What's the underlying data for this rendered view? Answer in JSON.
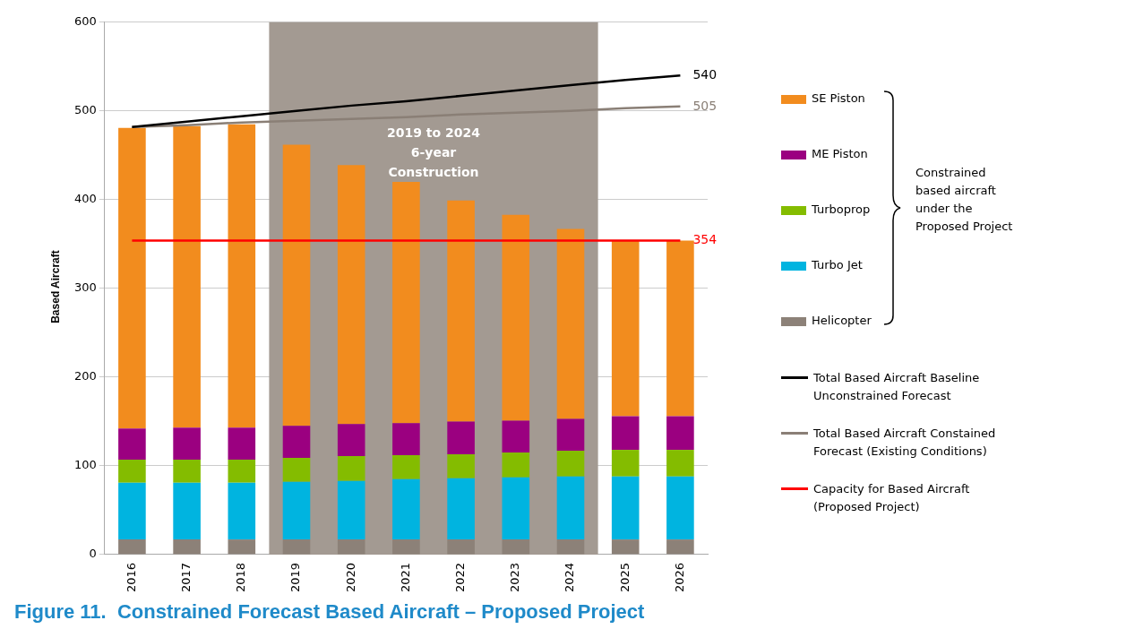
{
  "chart_data": {
    "type": "bar",
    "stacked": true,
    "title": "Figure 11.  Constrained Forecast Based Aircraft – Proposed Project",
    "ylabel": "Based Aircraft",
    "categories": [
      "2016",
      "2017",
      "2018",
      "2019",
      "2020",
      "2021",
      "2022",
      "2023",
      "2024",
      "2025",
      "2026"
    ],
    "series": [
      {
        "name": "Helicopter",
        "color": "#8c8178",
        "values": [
          17,
          17,
          17,
          17,
          17,
          17,
          17,
          17,
          17,
          17,
          17
        ]
      },
      {
        "name": "Turbo Jet",
        "color": "#00b4e0",
        "values": [
          64,
          64,
          64,
          65,
          66,
          68,
          69,
          70,
          71,
          71,
          71
        ]
      },
      {
        "name": "Turboprop",
        "color": "#84bc00",
        "values": [
          26,
          26,
          26,
          27,
          28,
          27,
          27,
          28,
          29,
          30,
          30
        ]
      },
      {
        "name": "ME Piston",
        "color": "#9b0080",
        "values": [
          35,
          36,
          36,
          36,
          36,
          36,
          37,
          36,
          36,
          38,
          38
        ]
      },
      {
        "name": "SE Piston",
        "color": "#f28c1e",
        "values": [
          339,
          340,
          342,
          317,
          292,
          272,
          249,
          232,
          214,
          198,
          198
        ]
      },
      {
        "name": "Total Based Aircraft Baseline Unconstrained Forecast",
        "type": "line",
        "color": "#000000",
        "values": [
          482,
          488,
          494,
          500,
          506,
          511,
          517,
          523,
          529,
          535,
          540
        ],
        "value_labels": [
          null,
          null,
          null,
          null,
          null,
          null,
          null,
          null,
          null,
          null,
          "540"
        ]
      },
      {
        "name": "Total Based Aircraft Constained Forecast (Existing Conditions)",
        "type": "line",
        "color": "#8a7f76",
        "values": [
          482,
          484,
          487,
          489,
          491,
          493,
          496,
          498,
          500,
          503,
          505
        ],
        "value_labels": [
          null,
          null,
          null,
          null,
          null,
          null,
          null,
          null,
          null,
          null,
          "505"
        ]
      },
      {
        "name": "Capacity for Based Aircraft (Proposed Project)",
        "type": "line",
        "color": "#ff0000",
        "values": [
          354,
          354,
          354,
          354,
          354,
          354,
          354,
          354,
          354,
          354,
          354
        ],
        "value_labels": [
          null,
          null,
          null,
          null,
          null,
          null,
          null,
          null,
          null,
          null,
          "354"
        ]
      }
    ],
    "ylim": [
      0,
      600
    ],
    "yticks": [
      0,
      100,
      200,
      300,
      400,
      500,
      600
    ],
    "grid": "y",
    "legend": "right",
    "marker": "none",
    "bands": [
      {
        "axis": "x",
        "from": "2019",
        "to": "2024",
        "label": "2019 to 2024\n6-year\nConstruction",
        "color": "#a39a92"
      }
    ],
    "annotations": [
      "Constrained based aircraft under the Proposed Project"
    ]
  }
}
